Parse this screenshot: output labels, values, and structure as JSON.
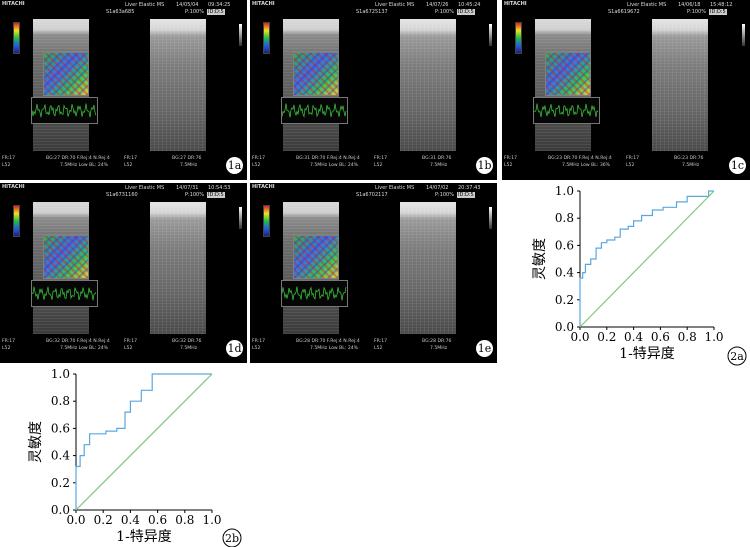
{
  "ultrasound_panels": [
    {
      "id": "1a",
      "brand": "HITACHI",
      "mode": "Liver Elastic MS",
      "serial": "S1a63a685",
      "date": "14/05/04",
      "time": "09:34:25",
      "power": "P:100%",
      "field": "ID:D:5",
      "foot_left1": "FR:17",
      "foot_left2": "L52",
      "foot_mid1": "BG:27  DR:70  F.Rej:4  N.Rej:4",
      "foot_mid2": "7.5MHz   Low   BL: 24%",
      "foot_r1": "FR:17",
      "foot_r2": "L52",
      "foot_far1": "BG:27  DR:76",
      "foot_far2": "7.5MHz",
      "label": "1a"
    },
    {
      "id": "1b",
      "brand": "HITACHI",
      "mode": "Liver Elastic MS",
      "serial": "S1a6725137",
      "date": "14/07/26",
      "time": "10:45:24",
      "power": "P:100%",
      "field": "ID:D:5",
      "foot_left1": "FR:17",
      "foot_left2": "L52",
      "foot_mid1": "BG:31  DR:70  F.Rej:4  N.Rej:4",
      "foot_mid2": "7.5MHz   Low   BL: 24%",
      "foot_r1": "FR:17",
      "foot_r2": "L52",
      "foot_far1": "BG:31  DR:76",
      "foot_far2": "7.5MHz",
      "label": "1b"
    },
    {
      "id": "1c",
      "brand": "HITACHI",
      "mode": "Liver Elastic MS",
      "serial": "S1a6619672",
      "date": "14/06/18",
      "time": "15:48:12",
      "power": "P:100%",
      "field": "ID:D:5",
      "foot_left1": "FR:17",
      "foot_left2": "L52",
      "foot_mid1": "BG:23  DR:70  F.Rej:4  N.Rej:4",
      "foot_mid2": "7.5MHz   Low   BL: 36%",
      "foot_r1": "FR:17",
      "foot_r2": "L52",
      "foot_far1": "BG:23  DR:76",
      "foot_far2": "7.5MHz",
      "label": "1c"
    },
    {
      "id": "1d",
      "brand": "HITACHI",
      "mode": "Liver Elastic MS",
      "serial": "S1a6731160",
      "date": "14/07/31",
      "time": "10:54:53",
      "power": "P:100%",
      "field": "ID:D:5",
      "foot_left1": "FR:17",
      "foot_left2": "L52",
      "foot_mid1": "BG:32  DR:70  F.Rej:4  N.Rej:4",
      "foot_mid2": "7.5MHz   Low   BL: 24%",
      "foot_r1": "FR:17",
      "foot_r2": "L52",
      "foot_far1": "BG:32  DR:76",
      "foot_far2": "7.5MHz",
      "label": "1d"
    },
    {
      "id": "1e",
      "brand": "HITACHI",
      "mode": "Liver Elastic MS",
      "serial": "S1a6702117",
      "date": "14/07/02",
      "time": "20:37:43",
      "power": "P:100%",
      "field": "ID:D:5",
      "foot_left1": "FR:17",
      "foot_left2": "L52",
      "foot_mid1": "BG:28  DR:70  F.Rej:4  N.Rej:4",
      "foot_mid2": "7.5MHz   Low   BL: 24%",
      "foot_r1": "FR:17",
      "foot_r2": "L52",
      "foot_far1": "BG:28  DR:76",
      "foot_far2": "7.5MHz",
      "label": "1e"
    }
  ],
  "chart_data": [
    {
      "type": "line",
      "label": "2a",
      "xlabel": "1-特异度",
      "ylabel": "灵敏度",
      "xlim": [
        0,
        1
      ],
      "ylim": [
        0,
        1
      ],
      "xticks": [
        "0.0",
        "0.2",
        "0.4",
        "0.6",
        "0.8",
        "1.0"
      ],
      "yticks": [
        "0.0",
        "0.2",
        "0.4",
        "0.6",
        "0.8",
        "1.0"
      ],
      "grid": false,
      "series": [
        {
          "role": "roc",
          "color": "#5aa7e0",
          "x": [
            0,
            0,
            0.02,
            0.02,
            0.04,
            0.04,
            0.08,
            0.08,
            0.12,
            0.12,
            0.16,
            0.16,
            0.2,
            0.2,
            0.26,
            0.26,
            0.3,
            0.3,
            0.36,
            0.36,
            0.4,
            0.4,
            0.46,
            0.46,
            0.54,
            0.54,
            0.62,
            0.62,
            0.72,
            0.72,
            0.8,
            0.8,
            0.96,
            0.96,
            1.0
          ],
          "y": [
            0,
            0.36,
            0.36,
            0.4,
            0.4,
            0.46,
            0.46,
            0.5,
            0.5,
            0.58,
            0.58,
            0.62,
            0.62,
            0.64,
            0.64,
            0.66,
            0.66,
            0.72,
            0.72,
            0.74,
            0.74,
            0.78,
            0.78,
            0.82,
            0.82,
            0.86,
            0.86,
            0.88,
            0.88,
            0.92,
            0.92,
            0.96,
            0.96,
            1.0,
            1.0
          ]
        },
        {
          "role": "reference",
          "color": "#7ec87e",
          "x": [
            0,
            1
          ],
          "y": [
            0,
            1
          ]
        }
      ]
    },
    {
      "type": "line",
      "label": "2b",
      "xlabel": "1-特异度",
      "ylabel": "灵敏度",
      "xlim": [
        0,
        1
      ],
      "ylim": [
        0,
        1
      ],
      "xticks": [
        "0.0",
        "0.2",
        "0.4",
        "0.6",
        "0.8",
        "1.0"
      ],
      "yticks": [
        "0.0",
        "0.2",
        "0.4",
        "0.6",
        "0.8",
        "1.0"
      ],
      "grid": false,
      "series": [
        {
          "role": "roc",
          "color": "#5aa7e0",
          "x": [
            0,
            0,
            0.03,
            0.03,
            0.06,
            0.06,
            0.1,
            0.1,
            0.22,
            0.22,
            0.3,
            0.3,
            0.36,
            0.36,
            0.4,
            0.4,
            0.48,
            0.48,
            0.56,
            0.56,
            1.0
          ],
          "y": [
            0,
            0.32,
            0.32,
            0.4,
            0.4,
            0.48,
            0.48,
            0.56,
            0.56,
            0.58,
            0.58,
            0.6,
            0.6,
            0.72,
            0.72,
            0.8,
            0.8,
            0.88,
            0.88,
            1.0,
            1.0
          ]
        },
        {
          "role": "reference",
          "color": "#7ec87e",
          "x": [
            0,
            1
          ],
          "y": [
            0,
            1
          ]
        }
      ]
    }
  ]
}
